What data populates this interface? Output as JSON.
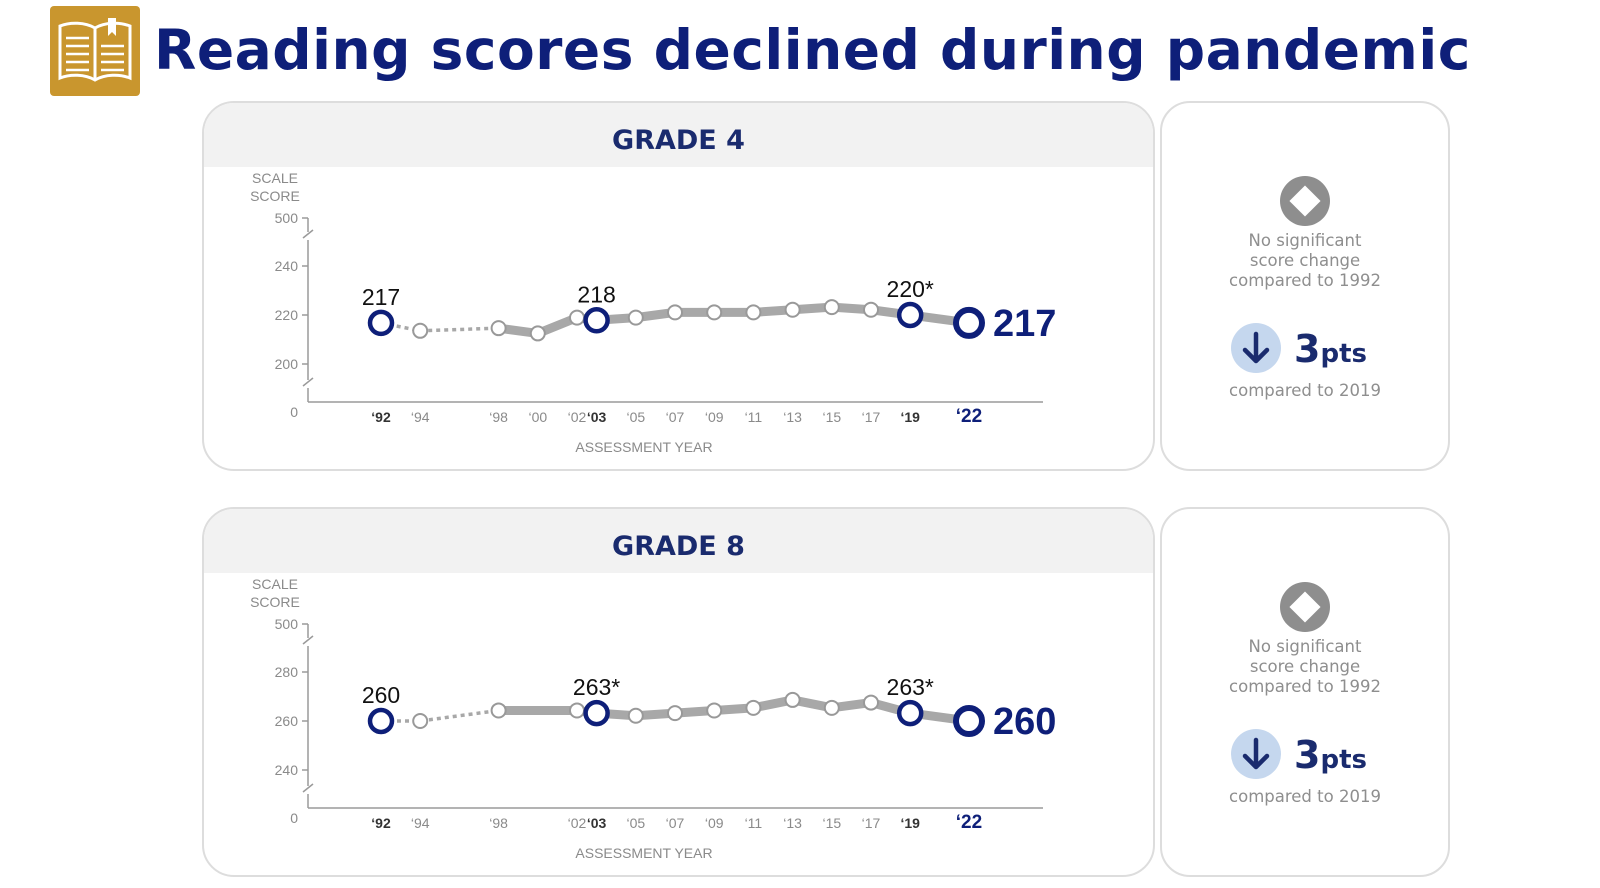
{
  "page_title": "Reading scores declined during pandemic",
  "colors": {
    "navy": "#0E1F79",
    "gold": "#C9962E",
    "gray_line": "#A8A8A8",
    "light_blue": "#C5D7EE"
  },
  "icons": {
    "header": "open-book-icon",
    "no_change": "diamond-icon",
    "decline": "down-arrow-icon"
  },
  "panels": [
    {
      "title": "GRADE 4",
      "side": {
        "no_change": "No significant\nscore change\ncompared to 1992",
        "change_num": "3",
        "change_unit": "pts",
        "compared": "compared to 2019"
      }
    },
    {
      "title": "GRADE 8",
      "side": {
        "no_change": "No significant\nscore change\ncompared to 1992",
        "change_num": "3",
        "change_unit": "pts",
        "compared": "compared to 2019"
      }
    }
  ],
  "chart_data": [
    {
      "type": "line",
      "title": "GRADE 4",
      "ylabel": "SCALE SCORE",
      "xlabel": "ASSESSMENT YEAR",
      "y_ticks": [
        "500",
        "240",
        "220",
        "200",
        "0"
      ],
      "ylim": [
        190,
        250
      ],
      "axis_break": true,
      "x_tick_labels": [
        "‘92",
        "‘94",
        "‘98",
        "‘00",
        "‘02",
        "‘03",
        "‘05",
        "‘07",
        "‘09",
        "‘11",
        "‘13",
        "‘15",
        "‘17",
        "‘19",
        "‘22"
      ],
      "bold_ticks": [
        "‘92",
        "‘03",
        "‘19",
        "‘22"
      ],
      "series": [
        {
          "values": [
            {
              "year": 1992,
              "value": 217,
              "highlight": true,
              "label": "217"
            },
            {
              "year": 1994,
              "value": 214
            },
            {
              "year": 1998,
              "value": 215
            },
            {
              "year": 2000,
              "value": 213
            },
            {
              "year": 2002,
              "value": 219
            },
            {
              "year": 2003,
              "value": 218,
              "highlight": true,
              "label": "218"
            },
            {
              "year": 2005,
              "value": 219
            },
            {
              "year": 2007,
              "value": 221
            },
            {
              "year": 2009,
              "value": 221
            },
            {
              "year": 2011,
              "value": 221
            },
            {
              "year": 2013,
              "value": 222
            },
            {
              "year": 2015,
              "value": 223
            },
            {
              "year": 2017,
              "value": 222
            },
            {
              "year": 2019,
              "value": 220,
              "highlight": true,
              "label": "220*"
            },
            {
              "year": 2022,
              "value": 217,
              "highlight": true,
              "final": true,
              "label": "217"
            }
          ]
        }
      ]
    },
    {
      "type": "line",
      "title": "GRADE 8",
      "ylabel": "SCALE SCORE",
      "xlabel": "ASSESSMENT YEAR",
      "y_ticks": [
        "500",
        "280",
        "260",
        "240",
        "0"
      ],
      "ylim": [
        230,
        290
      ],
      "axis_break": true,
      "x_tick_labels": [
        "‘92",
        "‘94",
        "‘98",
        "‘02",
        "‘03",
        "‘05",
        "‘07",
        "‘09",
        "‘11",
        "‘13",
        "‘15",
        "‘17",
        "‘19",
        "‘22"
      ],
      "bold_ticks": [
        "‘92",
        "‘03",
        "‘19",
        "‘22"
      ],
      "series": [
        {
          "values": [
            {
              "year": 1992,
              "value": 260,
              "highlight": true,
              "label": "260"
            },
            {
              "year": 1994,
              "value": 260
            },
            {
              "year": 1998,
              "value": 264
            },
            {
              "year": 2002,
              "value": 264
            },
            {
              "year": 2003,
              "value": 263,
              "highlight": true,
              "label": "263*"
            },
            {
              "year": 2005,
              "value": 262
            },
            {
              "year": 2007,
              "value": 263
            },
            {
              "year": 2009,
              "value": 264
            },
            {
              "year": 2011,
              "value": 265
            },
            {
              "year": 2013,
              "value": 268
            },
            {
              "year": 2015,
              "value": 265
            },
            {
              "year": 2017,
              "value": 267
            },
            {
              "year": 2019,
              "value": 263,
              "highlight": true,
              "label": "263*"
            },
            {
              "year": 2022,
              "value": 260,
              "highlight": true,
              "final": true,
              "label": "260"
            }
          ]
        }
      ]
    }
  ]
}
